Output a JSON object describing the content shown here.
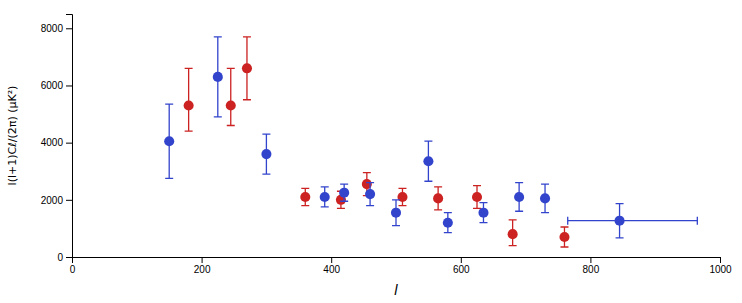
{
  "chart_data": {
    "type": "scatter",
    "xlabel": "l",
    "ylabel": "l(l+1)Cℓ/(2π)  (μK²)",
    "xlim": [
      0,
      1000
    ],
    "ylim": [
      0,
      8500
    ],
    "xticks": [
      0,
      200,
      400,
      600,
      800,
      1000
    ],
    "yticks": [
      0,
      2000,
      4000,
      6000,
      8000
    ],
    "series": [
      {
        "color": "#3344cc",
        "marker": "circle",
        "x": [
          150,
          225,
          300,
          390,
          420,
          460,
          500,
          550,
          580,
          635,
          690,
          730,
          845
        ],
        "values": [
          4050,
          6300,
          3600,
          2100,
          2250,
          2200,
          1550,
          3350,
          1200,
          1550,
          2100,
          2050,
          1270
        ],
        "yerr_lo": [
          1300,
          1400,
          700,
          350,
          300,
          400,
          450,
          700,
          350,
          350,
          500,
          500,
          600
        ],
        "yerr_hi": [
          1300,
          1400,
          700,
          350,
          300,
          400,
          450,
          700,
          350,
          350,
          500,
          500,
          600
        ],
        "xerr_lo": [
          0,
          0,
          0,
          0,
          0,
          0,
          0,
          0,
          0,
          0,
          0,
          0,
          80
        ],
        "xerr_hi": [
          0,
          0,
          0,
          0,
          0,
          0,
          0,
          0,
          0,
          0,
          0,
          0,
          120
        ]
      },
      {
        "color": "#cc2222",
        "marker": "circle",
        "x": [
          180,
          245,
          270,
          360,
          415,
          455,
          510,
          565,
          625,
          680,
          760
        ],
        "values": [
          5300,
          5300,
          6600,
          2100,
          2000,
          2550,
          2100,
          2050,
          2100,
          800,
          700
        ],
        "yerr_lo": [
          900,
          700,
          1100,
          300,
          300,
          400,
          300,
          400,
          400,
          400,
          350
        ],
        "yerr_hi": [
          1300,
          1300,
          1100,
          300,
          300,
          400,
          300,
          400,
          400,
          500,
          350
        ]
      }
    ]
  }
}
